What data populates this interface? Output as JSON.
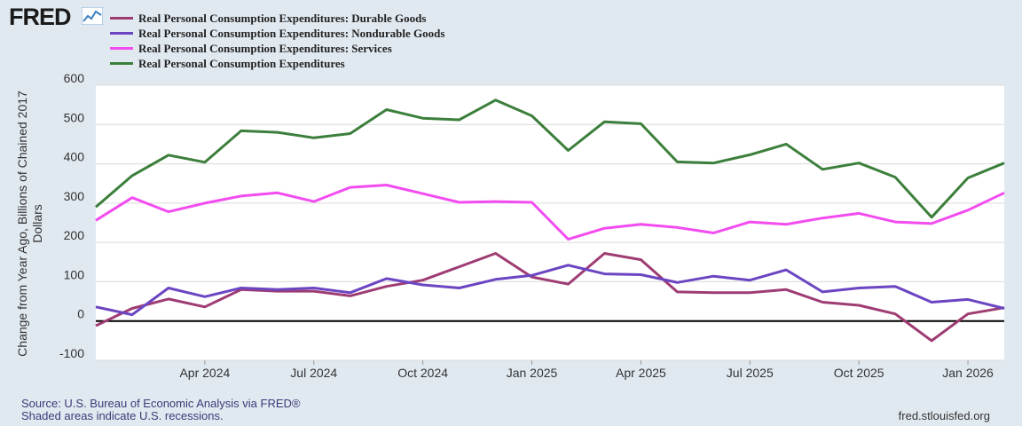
{
  "header": {
    "logo_text": "FRED",
    "logo_icon": "fred-chart-icon"
  },
  "footer": {
    "source": "Source: U.S. Bureau of Economic Analysis via FRED®",
    "recession_note": "Shaded areas indicate U.S. recessions.",
    "site": "fred.stlouisfed.org"
  },
  "chart_data": {
    "type": "line",
    "ylabel_lines": [
      "Change from Year Ago, Billions of Chained 2017",
      "Dollars"
    ],
    "ylim": [
      -100,
      600
    ],
    "yticks": [
      -100,
      0,
      100,
      200,
      300,
      400,
      500,
      600
    ],
    "grid": true,
    "x_start_month_index": 0,
    "x_end_month_index": 25,
    "xtick_labels": [
      {
        "label": "Apr 2024",
        "month_index": 3
      },
      {
        "label": "Jul 2024",
        "month_index": 6
      },
      {
        "label": "Oct 2024",
        "month_index": 9
      },
      {
        "label": "Jan 2025",
        "month_index": 12
      },
      {
        "label": "Apr 2025",
        "month_index": 15
      },
      {
        "label": "Jul 2025",
        "month_index": 18
      },
      {
        "label": "Oct 2025",
        "month_index": 21
      },
      {
        "label": "Jan 2026",
        "month_index": 24
      }
    ],
    "series": [
      {
        "name": "Real Personal Consumption Expenditures: Durable Goods",
        "color": "#9e3c73",
        "values": [
          -12,
          32,
          56,
          36,
          80,
          76,
          76,
          64,
          88,
          104,
          138,
          172,
          112,
          94,
          172,
          156,
          74,
          72,
          72,
          80,
          48,
          40,
          18,
          -50,
          18,
          34
        ]
      },
      {
        "name": "Real Personal Consumption Expenditures: Nondurable Goods",
        "color": "#6b45c2",
        "values": [
          36,
          16,
          84,
          62,
          84,
          80,
          84,
          72,
          108,
          92,
          84,
          106,
          116,
          142,
          120,
          118,
          98,
          114,
          104,
          130,
          74,
          84,
          88,
          48,
          55,
          32
        ]
      },
      {
        "name": "Real Personal Consumption Expenditures: Services",
        "color": "#f24cf0",
        "values": [
          256,
          314,
          278,
          300,
          318,
          326,
          304,
          340,
          346,
          324,
          302,
          304,
          302,
          208,
          236,
          246,
          238,
          224,
          252,
          246,
          262,
          274,
          252,
          248,
          282,
          326
        ]
      },
      {
        "name": "Real Personal Consumption Expenditures",
        "color": "#3c7f3c",
        "values": [
          290,
          370,
          422,
          404,
          484,
          480,
          466,
          477,
          538,
          516,
          512,
          562,
          522,
          434,
          507,
          502,
          405,
          402,
          423,
          450,
          386,
          402,
          366,
          264,
          364,
          402
        ]
      }
    ]
  }
}
